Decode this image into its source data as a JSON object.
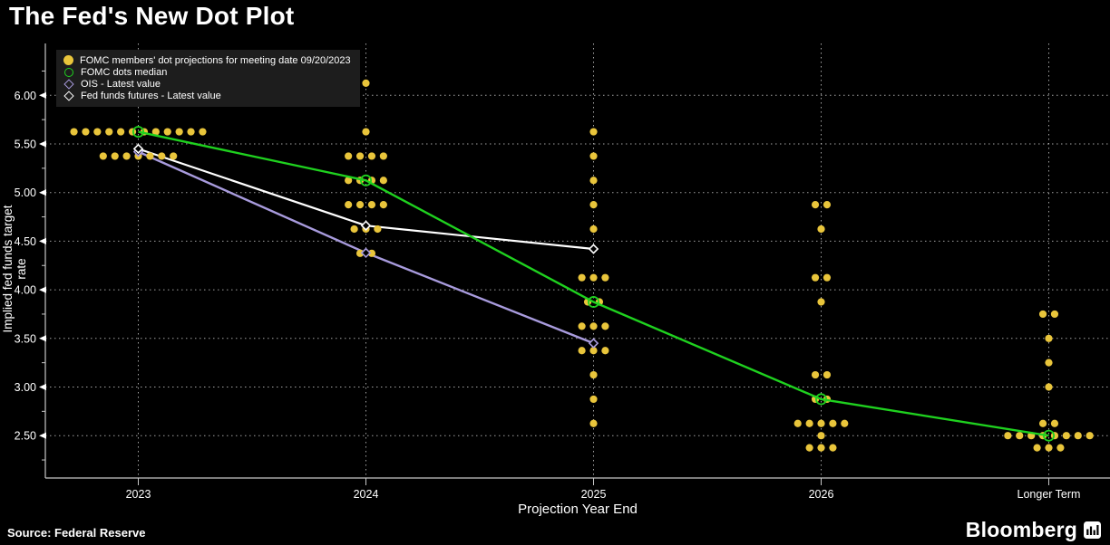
{
  "title": "The Fed's New Dot Plot",
  "source": "Source: Federal Reserve",
  "brand": {
    "name": "Bloomberg",
    "icon": "bloomberg-terminal-icon"
  },
  "chart_data": {
    "type": "scatter",
    "title": "The Fed's New Dot Plot",
    "xlabel": "Projection Year End",
    "ylabel": "Implied fed funds target rate",
    "x_categories": [
      "2023",
      "2024",
      "2025",
      "2026",
      "Longer Term"
    ],
    "y_tick_labels": [
      "6.00",
      "5.50",
      "5.00",
      "4.50",
      "4.00",
      "3.50",
      "3.00",
      "2.50"
    ],
    "y_tick_values": [
      6.0,
      5.5,
      5.0,
      4.5,
      4.0,
      3.5,
      3.0,
      2.5
    ],
    "ylim": [
      2.06,
      6.53
    ],
    "grid": "dotted",
    "legend_position": "top-left",
    "colors": {
      "dots": "#e9c53b",
      "median": "#1fd11f",
      "ois": "#a89bdd",
      "futures": "#ffffff",
      "grid": "#d8d8d8",
      "axis": "#c8c8c8"
    },
    "legend": [
      {
        "label": "FOMC members' dot projections for meeting date 09/20/2023",
        "marker": "filled-circle",
        "color": "#e9c53b"
      },
      {
        "label": "FOMC dots median",
        "marker": "open-circle",
        "color": "#1fd11f"
      },
      {
        "label": "OIS - Latest value",
        "marker": "open-diamond",
        "color": "#a89bdd"
      },
      {
        "label": "Fed funds futures - Latest value",
        "marker": "open-diamond",
        "color": "#ffffff"
      }
    ],
    "series": [
      {
        "name": "FOMC members' dot projections for meeting date 09/20/2023",
        "type": "dot-histogram",
        "color": "#e9c53b",
        "points": [
          {
            "x": "2023",
            "rate": 5.625,
            "count": 12
          },
          {
            "x": "2023",
            "rate": 5.375,
            "count": 7
          },
          {
            "x": "2024",
            "rate": 6.125,
            "count": 1
          },
          {
            "x": "2024",
            "rate": 5.625,
            "count": 1
          },
          {
            "x": "2024",
            "rate": 5.375,
            "count": 4
          },
          {
            "x": "2024",
            "rate": 5.125,
            "count": 4
          },
          {
            "x": "2024",
            "rate": 4.875,
            "count": 4
          },
          {
            "x": "2024",
            "rate": 4.625,
            "count": 3
          },
          {
            "x": "2024",
            "rate": 4.375,
            "count": 2
          },
          {
            "x": "2025",
            "rate": 5.625,
            "count": 1
          },
          {
            "x": "2025",
            "rate": 5.375,
            "count": 1
          },
          {
            "x": "2025",
            "rate": 5.125,
            "count": 1
          },
          {
            "x": "2025",
            "rate": 4.875,
            "count": 1
          },
          {
            "x": "2025",
            "rate": 4.625,
            "count": 1
          },
          {
            "x": "2025",
            "rate": 4.125,
            "count": 3
          },
          {
            "x": "2025",
            "rate": 3.875,
            "count": 2
          },
          {
            "x": "2025",
            "rate": 3.625,
            "count": 3
          },
          {
            "x": "2025",
            "rate": 3.375,
            "count": 3
          },
          {
            "x": "2025",
            "rate": 3.125,
            "count": 1
          },
          {
            "x": "2025",
            "rate": 2.875,
            "count": 1
          },
          {
            "x": "2025",
            "rate": 2.625,
            "count": 1
          },
          {
            "x": "2026",
            "rate": 4.875,
            "count": 2
          },
          {
            "x": "2026",
            "rate": 4.625,
            "count": 1
          },
          {
            "x": "2026",
            "rate": 4.125,
            "count": 2
          },
          {
            "x": "2026",
            "rate": 3.875,
            "count": 1
          },
          {
            "x": "2026",
            "rate": 3.125,
            "count": 2
          },
          {
            "x": "2026",
            "rate": 2.875,
            "count": 2
          },
          {
            "x": "2026",
            "rate": 2.625,
            "count": 5
          },
          {
            "x": "2026",
            "rate": 2.5,
            "count": 1
          },
          {
            "x": "2026",
            "rate": 2.375,
            "count": 3
          },
          {
            "x": "Longer Term",
            "rate": 3.75,
            "count": 2
          },
          {
            "x": "Longer Term",
            "rate": 3.5,
            "count": 1
          },
          {
            "x": "Longer Term",
            "rate": 3.25,
            "count": 1
          },
          {
            "x": "Longer Term",
            "rate": 3.0,
            "count": 1
          },
          {
            "x": "Longer Term",
            "rate": 2.625,
            "count": 2
          },
          {
            "x": "Longer Term",
            "rate": 2.5,
            "count": 8
          },
          {
            "x": "Longer Term",
            "rate": 2.375,
            "count": 3
          }
        ]
      },
      {
        "name": "FOMC dots median",
        "type": "line-open-circle",
        "color": "#1fd11f",
        "points": [
          {
            "x": "2023",
            "rate": 5.625
          },
          {
            "x": "2024",
            "rate": 5.125
          },
          {
            "x": "2025",
            "rate": 3.875
          },
          {
            "x": "2026",
            "rate": 2.875
          },
          {
            "x": "Longer Term",
            "rate": 2.5
          }
        ]
      },
      {
        "name": "OIS - Latest value",
        "type": "line-open-diamond",
        "color": "#a89bdd",
        "points": [
          {
            "x": "2023",
            "rate": 5.42
          },
          {
            "x": "2024",
            "rate": 4.38
          },
          {
            "x": "2025",
            "rate": 3.45
          }
        ]
      },
      {
        "name": "Fed funds futures - Latest value",
        "type": "line-open-diamond",
        "color": "#ffffff",
        "points": [
          {
            "x": "2023",
            "rate": 5.45
          },
          {
            "x": "2024",
            "rate": 4.66
          },
          {
            "x": "2025",
            "rate": 4.42
          }
        ]
      }
    ]
  }
}
